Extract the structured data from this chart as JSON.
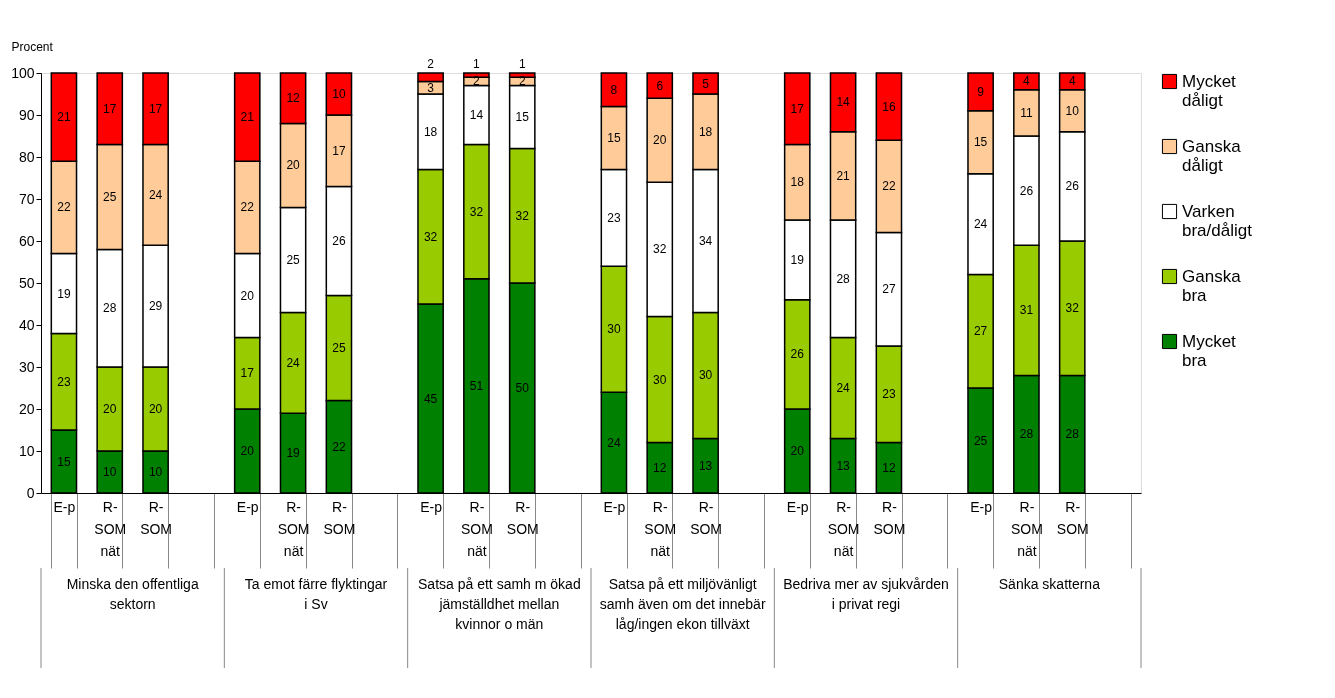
{
  "chart_data": {
    "type": "bar",
    "stacked": true,
    "ylabel": "Procent",
    "categories": [
      "E-p",
      "R-SOM nät",
      "R-SOM",
      null,
      "E-p",
      "R-SOM nät",
      "R-SOM",
      null,
      "E-p",
      "R-SOM nät",
      "R-SOM",
      null,
      "E-p",
      "R-SOM nät",
      "R-SOM",
      null,
      "E-p",
      "R-SOM nät",
      "R-SOM",
      null,
      "E-p",
      "R-SOM nät",
      "R-SOM",
      null
    ],
    "series": [
      {
        "name": "Mycket bra",
        "color": "#008000",
        "values": [
          15,
          10,
          10,
          null,
          20,
          19,
          22,
          null,
          45,
          51,
          50,
          null,
          24,
          12,
          13,
          null,
          20,
          13,
          12,
          null,
          25,
          28,
          28,
          null
        ]
      },
      {
        "name": "Ganska bra",
        "color": "#99cc00",
        "values": [
          23,
          20,
          20,
          null,
          17,
          24,
          25,
          null,
          32,
          32,
          32,
          null,
          30,
          30,
          30,
          null,
          26,
          24,
          23,
          null,
          27,
          31,
          32,
          null
        ]
      },
      {
        "name": "Varken bra/dåligt",
        "color": "#ffffff",
        "values": [
          19,
          28,
          29,
          null,
          20,
          25,
          26,
          null,
          18,
          14,
          15,
          null,
          23,
          32,
          34,
          null,
          19,
          28,
          27,
          null,
          24,
          26,
          26,
          null
        ]
      },
      {
        "name": "Ganska dåligt",
        "color": "#ffcc99",
        "values": [
          22,
          25,
          24,
          null,
          22,
          20,
          17,
          null,
          3,
          2,
          2,
          null,
          15,
          20,
          18,
          null,
          18,
          21,
          22,
          null,
          15,
          11,
          10,
          null
        ]
      },
      {
        "name": "Mycket dåligt",
        "color": "#ff0000",
        "values": [
          21,
          17,
          17,
          null,
          21,
          12,
          10,
          null,
          2,
          1,
          1,
          null,
          8,
          6,
          5,
          null,
          17,
          14,
          16,
          null,
          9,
          4,
          4,
          null
        ]
      }
    ],
    "ylim": [
      0,
      100
    ],
    "yticks": [
      0,
      10,
      20,
      30,
      40,
      50,
      60,
      70,
      80,
      90,
      100
    ],
    "data_labels": true,
    "legend": "right",
    "grid": false,
    "annotations": [
      "Minska den offentliga sektorn",
      "Ta emot färre flyktingar i Sv",
      "Satsa på ett samh m ökad jämställdhet mellan kvinnor o män",
      "Satsa på ett miljövänligt samh även om det innebär låg/ingen ekon tillväxt",
      "Bedriva mer av sjukvården i privat regi",
      "Sänka skatterna"
    ]
  }
}
